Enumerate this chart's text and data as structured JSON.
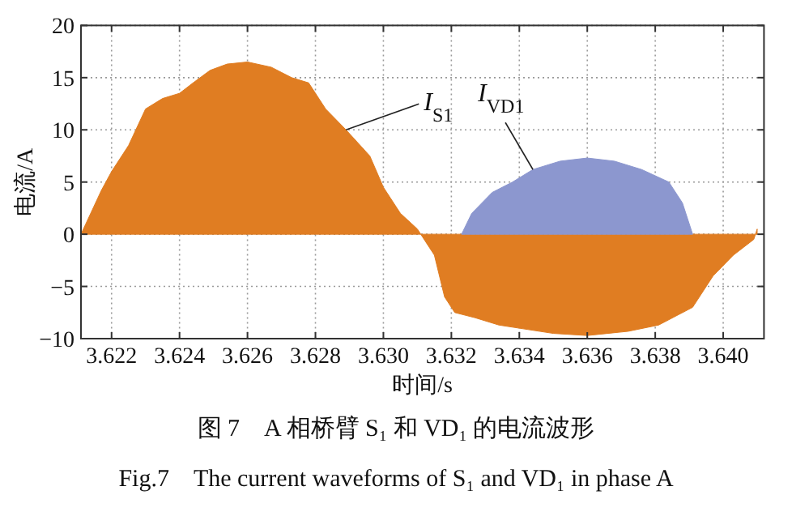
{
  "chart_data": {
    "type": "area",
    "xlabel": "时间/s",
    "ylabel": "电流/A",
    "xlim": [
      3.6211,
      3.6412
    ],
    "ylim": [
      -10,
      20
    ],
    "xticks": [
      3.622,
      3.624,
      3.626,
      3.628,
      {
        "value": 3.63,
        "label": "3.630"
      },
      3.632,
      3.634,
      3.636,
      3.638,
      {
        "value": 3.64,
        "label": "3.640"
      }
    ],
    "yticks": [
      {
        "value": -10,
        "label": "−10"
      },
      {
        "value": -5,
        "label": "−5"
      },
      0,
      5,
      10,
      15,
      20
    ],
    "grid": true,
    "series": [
      {
        "name": "I$_{S1}$",
        "color": "#e07d22",
        "x": [
          3.6211,
          3.6217,
          3.622,
          3.6225,
          3.623,
          3.6235,
          3.624,
          3.6244,
          3.6249,
          3.6254,
          3.626,
          3.6267,
          3.6273,
          3.6278,
          3.6283,
          3.6289,
          3.6296,
          3.63,
          3.6305,
          3.631,
          3.6311,
          3.6315,
          3.6318,
          3.6321,
          3.6327,
          3.6334,
          3.634,
          3.635,
          3.636,
          3.6372,
          3.6381,
          3.6391,
          3.6397,
          3.6403,
          3.6409,
          3.641
        ],
        "values": [
          0,
          4.2,
          6,
          8.5,
          12,
          13,
          13.5,
          14.5,
          15.7,
          16.3,
          16.5,
          16,
          15,
          14.5,
          12,
          10,
          7.5,
          4.5,
          2,
          0.5,
          0,
          -2,
          -6,
          -7.5,
          -8,
          -8.7,
          -9,
          -9.5,
          -9.7,
          -9.3,
          -8.7,
          -7,
          -4,
          -2,
          -0.5,
          0.5
        ]
      },
      {
        "name": "I$_{VD1}$",
        "color": "#8c97cf",
        "x": [
          3.6323,
          3.6326,
          3.6332,
          3.6338,
          3.6344,
          3.6352,
          3.636,
          3.6368,
          3.6376,
          3.6384,
          3.6388,
          3.6391
        ],
        "values": [
          0,
          2,
          4,
          5,
          6.2,
          7,
          7.3,
          7,
          6.2,
          5,
          3,
          0
        ]
      }
    ],
    "annotations": [
      "图 7　A 相桥臂 S₁ 和 VD₁ 的电流波形",
      "Fig.7　The current waveforms of S₁ and VD₁ in phase A"
    ]
  }
}
